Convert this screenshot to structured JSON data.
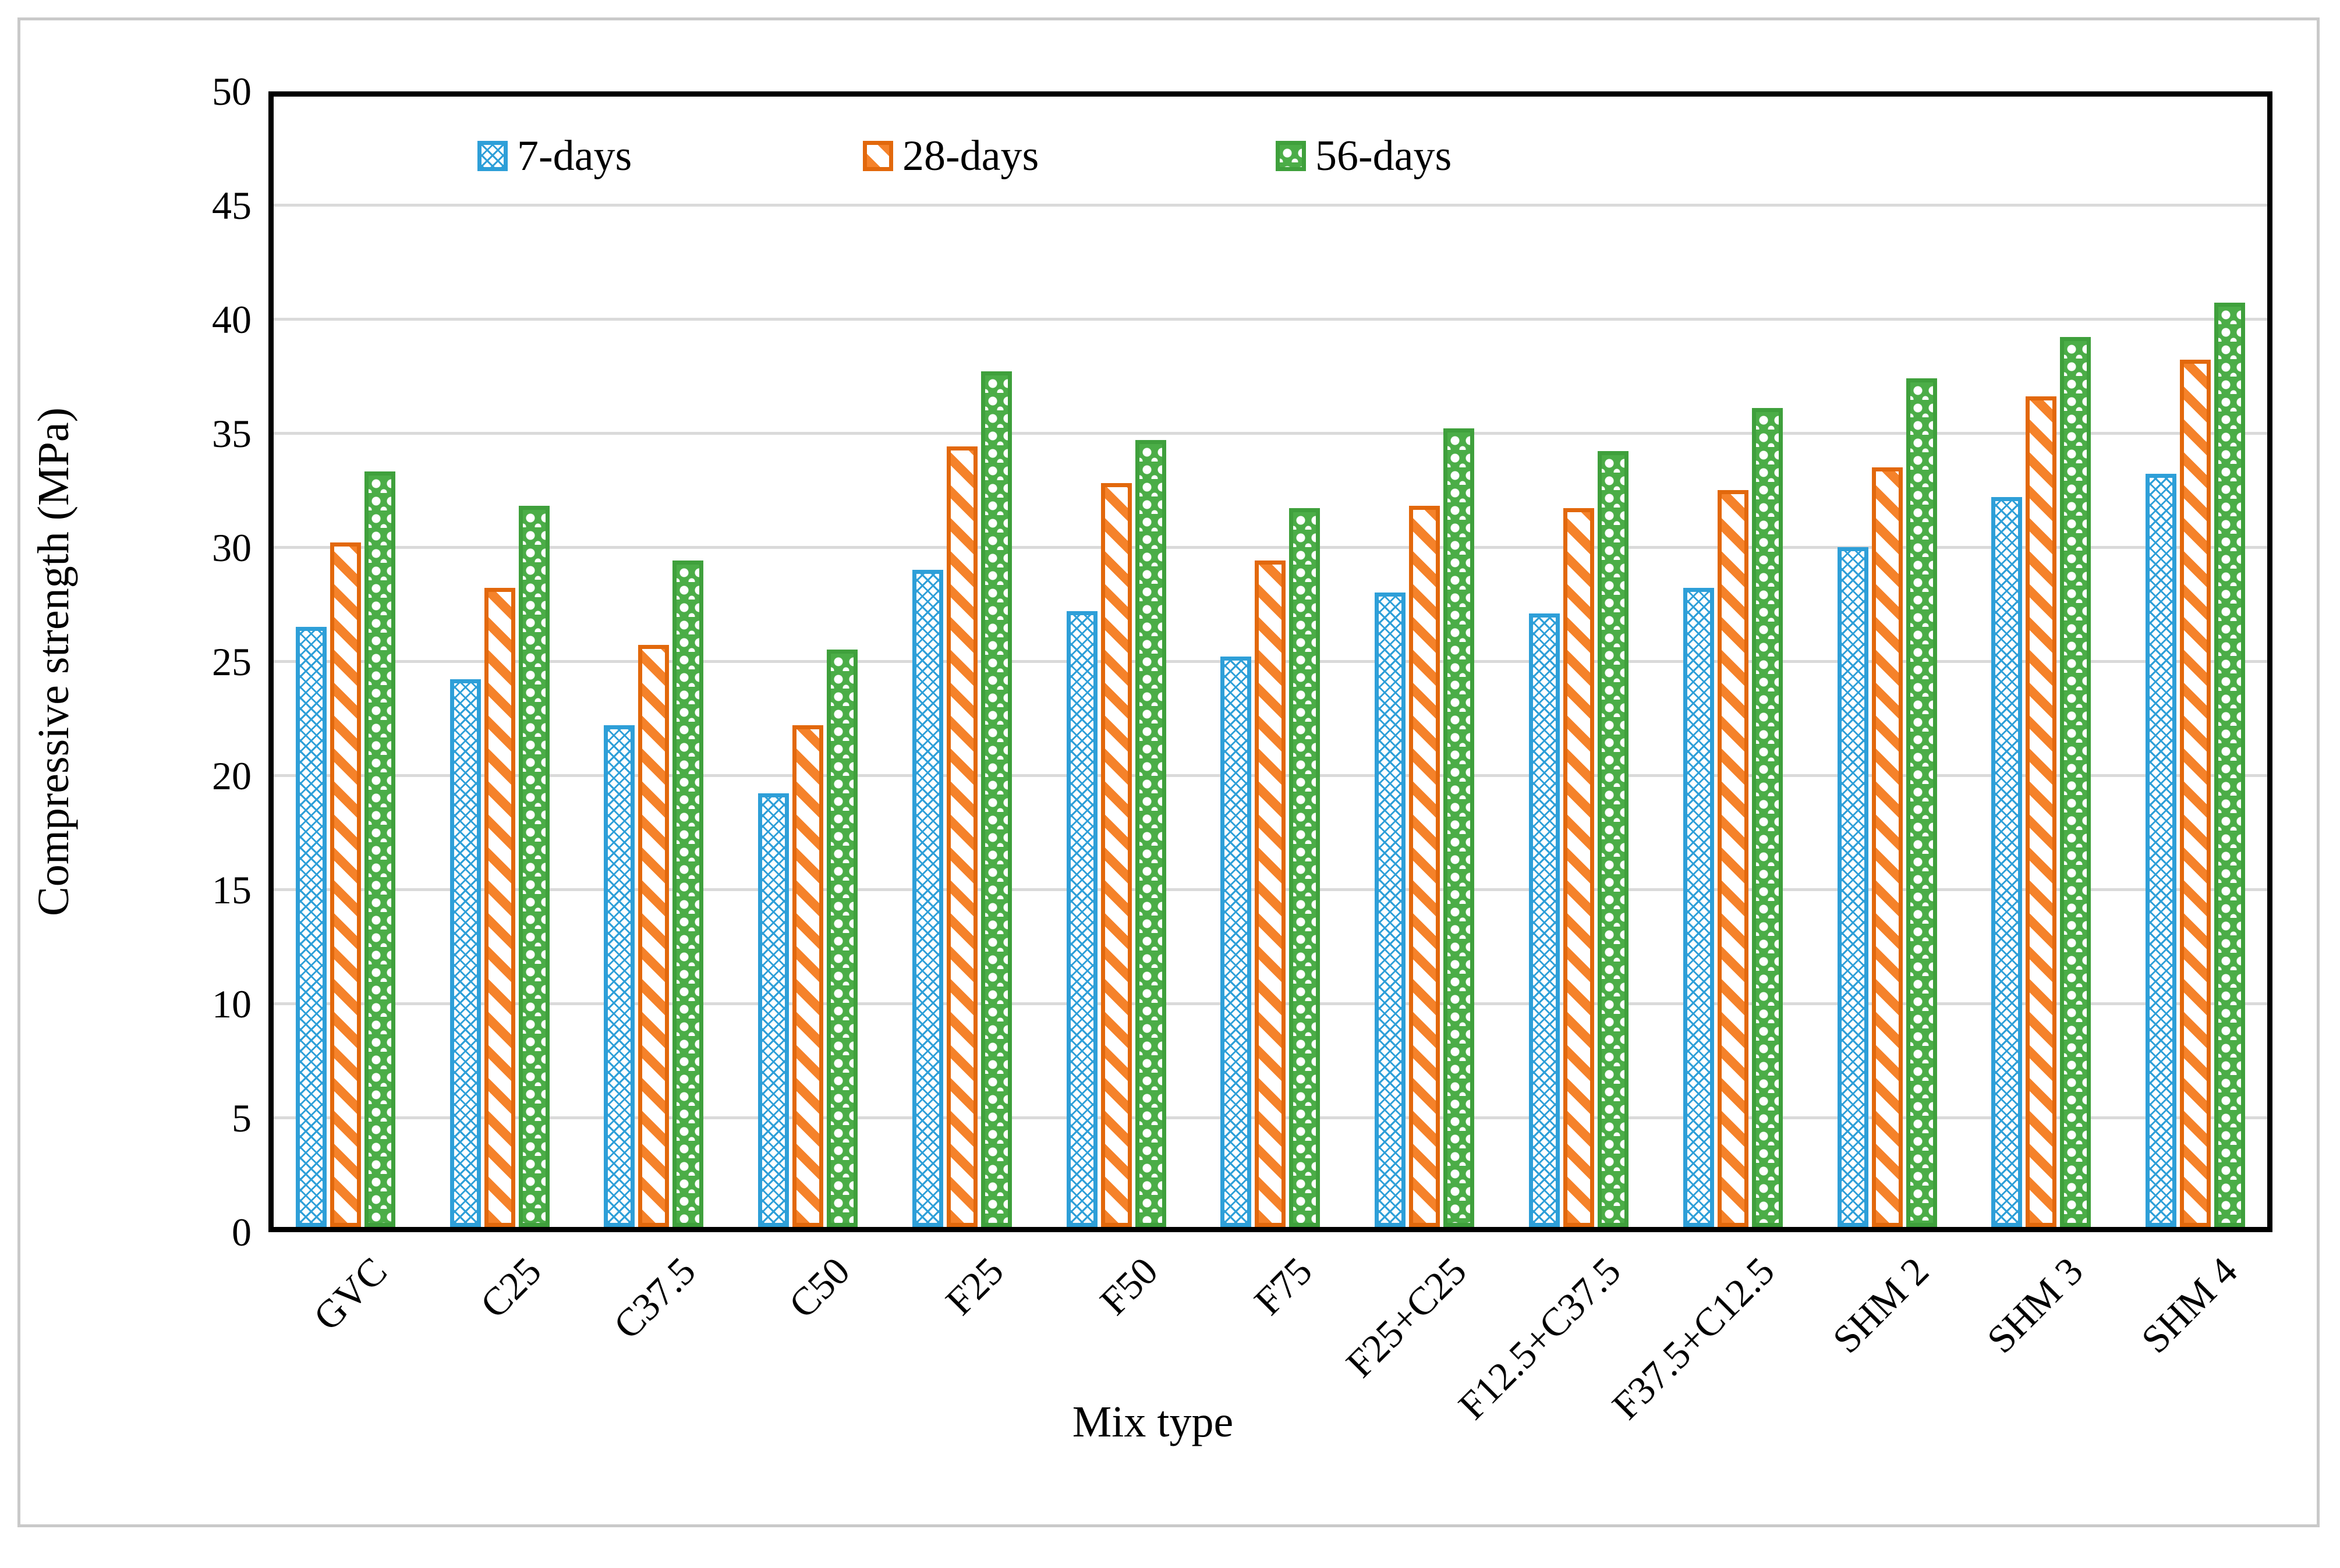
{
  "chart_data": {
    "type": "bar",
    "title": "",
    "xlabel": "Mix type",
    "ylabel": "Compressive strength (MPa)",
    "ylim": [
      0,
      50
    ],
    "ytick_interval": 5,
    "yticks": [
      0,
      5,
      10,
      15,
      20,
      25,
      30,
      35,
      40,
      45,
      50
    ],
    "grid": "horizontal gridlines on",
    "legend_position": "top-center-inside",
    "categories": [
      "GVC",
      "C25",
      "C37.5",
      "C50",
      "F25",
      "F50",
      "F75",
      "F25+C25",
      "F12.5+C37.5",
      "F37.5+C12.5",
      "SHM 2",
      "SHM 3",
      "SHM 4"
    ],
    "series": [
      {
        "name": "7-days",
        "color": "#2E9FD8",
        "pattern": "diamond-trellis",
        "values": [
          26.3,
          24.0,
          22.0,
          19.0,
          28.8,
          27.0,
          25.0,
          27.8,
          26.9,
          28.0,
          29.8,
          32.0,
          33.0
        ]
      },
      {
        "name": "28-days",
        "color": "#F5822A",
        "border_color": "#E2680C",
        "pattern": "diagonal-stripes",
        "values": [
          30.0,
          28.0,
          25.5,
          22.0,
          34.2,
          32.6,
          29.2,
          31.6,
          31.5,
          32.3,
          33.3,
          36.4,
          38.0
        ]
      },
      {
        "name": "56-days",
        "color": "#4BAD47",
        "pattern": "circle-chain",
        "values": [
          33.1,
          31.6,
          29.2,
          25.3,
          37.5,
          34.5,
          31.5,
          35.0,
          34.0,
          35.9,
          37.2,
          39.0,
          40.5
        ]
      }
    ],
    "colors": {
      "axis": "#000000",
      "gridline": "#DADADA",
      "frame": "#C9C9C9",
      "background": "#FFFFFF"
    }
  }
}
